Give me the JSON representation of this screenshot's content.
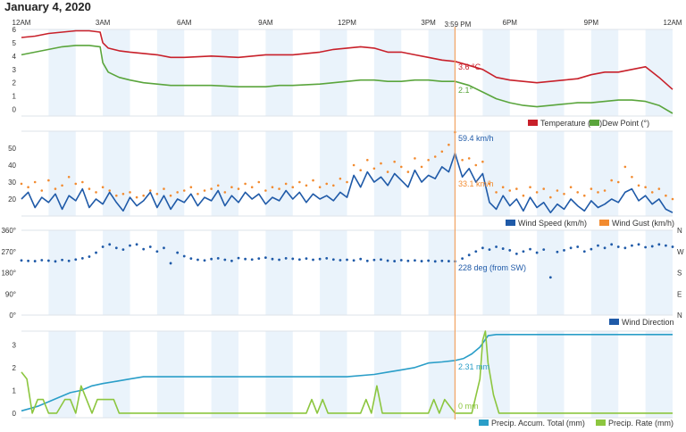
{
  "page": {
    "date_title": "January 4, 2020"
  },
  "cursor": {
    "time_label": "3:59 PM",
    "hour": 15.98
  },
  "time_ticks": [
    "12AM",
    "3AM",
    "6AM",
    "9AM",
    "12PM",
    "3PM",
    "6PM",
    "9PM",
    "12AM"
  ],
  "colors": {
    "temperature": "#c8202a",
    "dew_point": "#5aa53c",
    "wind_speed": "#1f5aa8",
    "wind_gust": "#f28b30",
    "wind_dir": "#1f5aa8",
    "precip_total": "#2a9ec8",
    "precip_rate": "#8cc63f",
    "cursor": "#f2a463",
    "band": "#eaf3fb"
  },
  "chart_data": [
    {
      "type": "line",
      "ylim": [
        -0.5,
        6
      ],
      "yticks": [
        "0",
        "1",
        "2",
        "3",
        "4",
        "5",
        "6"
      ],
      "legend": [
        "Temperature (°C)",
        "Dew Point (°)"
      ],
      "annotations": [
        "3.6 °C",
        "2.1°"
      ],
      "series": [
        {
          "name": "Temperature (°C)",
          "x": [
            0,
            0.5,
            1,
            1.5,
            2,
            2.5,
            2.9,
            3.0,
            3.2,
            3.6,
            4,
            4.5,
            5,
            5.5,
            6,
            7,
            8,
            9,
            9.5,
            10,
            11,
            11.5,
            12,
            12.5,
            13,
            13.5,
            14,
            14.5,
            15,
            15.5,
            15.98,
            16.5,
            17,
            17.5,
            18,
            18.5,
            19,
            19.5,
            20,
            20.5,
            21,
            21.5,
            22,
            22.5,
            23,
            23.5,
            24
          ],
          "values": [
            5.4,
            5.5,
            5.7,
            5.8,
            5.9,
            5.9,
            5.8,
            5.0,
            4.6,
            4.4,
            4.3,
            4.2,
            4.1,
            3.9,
            3.9,
            4.0,
            3.9,
            4.1,
            4.1,
            4.1,
            4.3,
            4.5,
            4.6,
            4.7,
            4.6,
            4.3,
            4.3,
            4.1,
            3.9,
            3.7,
            3.6,
            3.3,
            3.0,
            2.4,
            2.2,
            2.1,
            2.0,
            2.1,
            2.2,
            2.3,
            2.6,
            2.8,
            2.8,
            3.0,
            3.2,
            2.4,
            1.5
          ]
        },
        {
          "name": "Dew Point (°)",
          "x": [
            0,
            0.5,
            1,
            1.5,
            2,
            2.5,
            2.9,
            3.0,
            3.2,
            3.6,
            4,
            4.5,
            5,
            5.5,
            6,
            7,
            8,
            9,
            9.5,
            10,
            11,
            11.5,
            12,
            12.5,
            13,
            13.5,
            14,
            14.5,
            15,
            15.5,
            15.98,
            16.5,
            17,
            17.5,
            18,
            18.5,
            19,
            19.5,
            20,
            20.5,
            21,
            21.5,
            22,
            22.5,
            23,
            23.5,
            24
          ],
          "values": [
            4.1,
            4.3,
            4.5,
            4.7,
            4.8,
            4.8,
            4.7,
            3.5,
            2.8,
            2.4,
            2.2,
            2.0,
            1.9,
            1.8,
            1.8,
            1.8,
            1.7,
            1.7,
            1.8,
            1.8,
            1.9,
            2.0,
            2.1,
            2.2,
            2.2,
            2.1,
            2.1,
            2.2,
            2.2,
            2.1,
            2.1,
            1.8,
            1.3,
            0.8,
            0.5,
            0.3,
            0.2,
            0.3,
            0.4,
            0.5,
            0.5,
            0.6,
            0.7,
            0.7,
            0.6,
            0.3,
            -0.3
          ]
        }
      ]
    },
    {
      "type": "line",
      "ylim": [
        10,
        60
      ],
      "yticks": [
        "20",
        "30",
        "40",
        "50"
      ],
      "legend": [
        "Wind Speed (km/h)",
        "Wind Gust (km/h)"
      ],
      "annotations": [
        "59.4 km/h",
        "33.1 km/h"
      ],
      "series": [
        {
          "name": "Wind Speed (km/h)",
          "x": [
            0,
            0.25,
            0.5,
            0.75,
            1,
            1.25,
            1.5,
            1.75,
            2,
            2.25,
            2.5,
            2.75,
            3,
            3.25,
            3.5,
            3.75,
            4,
            4.25,
            4.5,
            4.75,
            5,
            5.25,
            5.5,
            5.75,
            6,
            6.25,
            6.5,
            6.75,
            7,
            7.25,
            7.5,
            7.75,
            8,
            8.25,
            8.5,
            8.75,
            9,
            9.25,
            9.5,
            9.75,
            10,
            10.25,
            10.5,
            10.75,
            11,
            11.25,
            11.5,
            11.75,
            12,
            12.25,
            12.5,
            12.75,
            13,
            13.25,
            13.5,
            13.75,
            14,
            14.25,
            14.5,
            14.75,
            15,
            15.25,
            15.5,
            15.75,
            15.98,
            16.25,
            16.5,
            16.75,
            17,
            17.25,
            17.5,
            17.75,
            18,
            18.25,
            18.5,
            18.75,
            19,
            19.25,
            19.5,
            19.75,
            20,
            20.25,
            20.5,
            20.75,
            21,
            21.25,
            21.5,
            21.75,
            22,
            22.25,
            22.5,
            22.75,
            23,
            23.25,
            23.5,
            23.75,
            24
          ],
          "values": [
            20,
            24,
            15,
            21,
            18,
            23,
            14,
            22,
            19,
            26,
            15,
            20,
            17,
            24,
            18,
            13,
            21,
            16,
            19,
            24,
            15,
            22,
            14,
            20,
            18,
            23,
            16,
            21,
            19,
            25,
            16,
            22,
            18,
            24,
            20,
            23,
            17,
            21,
            19,
            25,
            20,
            24,
            18,
            23,
            20,
            22,
            19,
            24,
            21,
            34,
            27,
            36,
            30,
            33,
            28,
            35,
            31,
            27,
            37,
            30,
            34,
            32,
            39,
            36,
            47,
            33,
            38,
            30,
            35,
            18,
            14,
            22,
            16,
            20,
            13,
            21,
            15,
            18,
            12,
            17,
            14,
            20,
            16,
            13,
            19,
            15,
            17,
            20,
            18,
            24,
            26,
            19,
            22,
            17,
            20,
            14,
            12
          ]
        },
        {
          "name": "Wind Gust (km/h)",
          "x": [
            0,
            0.25,
            0.5,
            0.75,
            1,
            1.25,
            1.5,
            1.75,
            2,
            2.25,
            2.5,
            2.75,
            3,
            3.25,
            3.5,
            3.75,
            4,
            4.25,
            4.5,
            4.75,
            5,
            5.25,
            5.5,
            5.75,
            6,
            6.25,
            6.5,
            6.75,
            7,
            7.25,
            7.5,
            7.75,
            8,
            8.25,
            8.5,
            8.75,
            9,
            9.25,
            9.5,
            9.75,
            10,
            10.25,
            10.5,
            10.75,
            11,
            11.25,
            11.5,
            11.75,
            12,
            12.25,
            12.5,
            12.75,
            13,
            13.25,
            13.5,
            13.75,
            14,
            14.25,
            14.5,
            14.75,
            15,
            15.25,
            15.5,
            15.75,
            15.98,
            16.25,
            16.5,
            16.75,
            17,
            17.25,
            17.5,
            17.75,
            18,
            18.25,
            18.5,
            18.75,
            19,
            19.25,
            19.5,
            19.75,
            20,
            20.25,
            20.5,
            20.75,
            21,
            21.25,
            21.5,
            21.75,
            22,
            22.25,
            22.5,
            22.75,
            23,
            23.25,
            23.5,
            23.75,
            24
          ],
          "values": [
            29,
            27,
            30,
            25,
            31,
            26,
            28,
            33,
            29,
            30,
            26,
            24,
            27,
            25,
            22,
            23,
            24,
            21,
            22,
            25,
            23,
            26,
            22,
            24,
            25,
            27,
            23,
            25,
            26,
            28,
            24,
            27,
            26,
            29,
            27,
            30,
            25,
            27,
            26,
            29,
            27,
            30,
            28,
            31,
            27,
            29,
            28,
            32,
            30,
            40,
            37,
            43,
            38,
            41,
            36,
            42,
            39,
            36,
            44,
            39,
            43,
            45,
            48,
            52,
            59.4,
            43,
            44,
            40,
            42,
            29,
            24,
            27,
            25,
            26,
            22,
            27,
            24,
            26,
            21,
            25,
            23,
            27,
            24,
            22,
            26,
            24,
            25,
            31,
            30,
            39,
            33,
            28,
            27,
            24,
            26,
            22,
            20
          ]
        }
      ]
    },
    {
      "type": "scatter",
      "ylim": [
        0,
        360
      ],
      "yticks": [
        "0°",
        "90°",
        "180°",
        "270°",
        "360°"
      ],
      "right_ticks": [
        "N",
        "E",
        "S",
        "W",
        "N"
      ],
      "legend": [
        "Wind Direction"
      ],
      "annotations": [
        "228 deg (from SW)"
      ],
      "series": [
        {
          "name": "Wind Direction",
          "x": [
            0,
            0.25,
            0.5,
            0.75,
            1,
            1.25,
            1.5,
            1.75,
            2,
            2.25,
            2.5,
            2.75,
            3,
            3.25,
            3.5,
            3.75,
            4,
            4.25,
            4.5,
            4.75,
            5,
            5.25,
            5.5,
            5.75,
            6,
            6.25,
            6.5,
            6.75,
            7,
            7.25,
            7.5,
            7.75,
            8,
            8.25,
            8.5,
            8.75,
            9,
            9.25,
            9.5,
            9.75,
            10,
            10.25,
            10.5,
            10.75,
            11,
            11.25,
            11.5,
            11.75,
            12,
            12.25,
            12.5,
            12.75,
            13,
            13.25,
            13.5,
            13.75,
            14,
            14.25,
            14.5,
            14.75,
            15,
            15.25,
            15.5,
            15.75,
            15.98,
            16.25,
            16.5,
            16.75,
            17,
            17.25,
            17.5,
            17.75,
            18,
            18.25,
            18.5,
            18.75,
            19,
            19.25,
            19.5,
            19.75,
            20,
            20.25,
            20.5,
            20.75,
            21,
            21.25,
            21.5,
            21.75,
            22,
            22.25,
            22.5,
            22.75,
            23,
            23.25,
            23.5,
            23.75,
            24
          ],
          "values": [
            232,
            230,
            229,
            233,
            231,
            228,
            234,
            230,
            236,
            241,
            248,
            265,
            290,
            300,
            285,
            278,
            295,
            300,
            280,
            290,
            270,
            285,
            220,
            265,
            250,
            240,
            235,
            232,
            238,
            241,
            235,
            230,
            242,
            238,
            236,
            240,
            244,
            238,
            235,
            241,
            239,
            236,
            240,
            235,
            238,
            241,
            236,
            233,
            235,
            232,
            238,
            230,
            234,
            236,
            231,
            229,
            233,
            230,
            232,
            229,
            231,
            228,
            230,
            229,
            228,
            240,
            255,
            270,
            285,
            278,
            290,
            282,
            275,
            260,
            270,
            280,
            265,
            278,
            160,
            268,
            275,
            285,
            290,
            270,
            280,
            295,
            285,
            300,
            290,
            285,
            295,
            300,
            288,
            292,
            300,
            295,
            290
          ]
        }
      ]
    },
    {
      "type": "line",
      "ylim": [
        -0.2,
        3.6
      ],
      "yticks": [
        "0",
        "1",
        "2",
        "3"
      ],
      "legend": [
        "Precip. Accum. Total (mm)",
        "Precip. Rate (mm)"
      ],
      "annotations": [
        "2.31 mm",
        "0 mm"
      ],
      "series": [
        {
          "name": "Precip. Accum. Total (mm)",
          "x": [
            0,
            0.3,
            0.6,
            1.0,
            1.4,
            1.8,
            2.2,
            2.6,
            3.0,
            3.5,
            4.0,
            4.5,
            5.0,
            6,
            7,
            8,
            9,
            10,
            11,
            12,
            13,
            13.5,
            14.0,
            14.5,
            15.0,
            15.5,
            15.98,
            16.3,
            16.6,
            16.9,
            17.2,
            17.5,
            18,
            19,
            20,
            21,
            22,
            23,
            24
          ],
          "values": [
            0.1,
            0.2,
            0.3,
            0.5,
            0.7,
            0.9,
            1.0,
            1.2,
            1.3,
            1.4,
            1.5,
            1.6,
            1.6,
            1.6,
            1.6,
            1.6,
            1.6,
            1.6,
            1.6,
            1.6,
            1.7,
            1.8,
            1.9,
            2.0,
            2.2,
            2.25,
            2.31,
            2.4,
            2.6,
            2.9,
            3.4,
            3.45,
            3.45,
            3.45,
            3.45,
            3.45,
            3.45,
            3.45,
            3.45
          ]
        },
        {
          "name": "Precip. Rate (mm)",
          "x": [
            0,
            0.2,
            0.4,
            0.6,
            0.8,
            1.0,
            1.3,
            1.6,
            1.8,
            2.0,
            2.2,
            2.4,
            2.6,
            2.8,
            3.0,
            3.2,
            3.4,
            3.6,
            3.8,
            10.5,
            10.7,
            10.9,
            11.1,
            11.3,
            11.5,
            12.5,
            12.7,
            12.9,
            13.1,
            13.3,
            13.5,
            15.0,
            15.2,
            15.4,
            15.6,
            15.98,
            16.6,
            16.9,
            17.0,
            17.1,
            17.2,
            17.4,
            17.6,
            24
          ],
          "values": [
            1.8,
            1.5,
            0,
            0.6,
            0.6,
            0,
            0,
            0.6,
            0.6,
            0,
            1.2,
            0.6,
            0,
            0.6,
            0.6,
            0.6,
            0.6,
            0,
            0,
            0,
            0.6,
            0,
            0.6,
            0,
            0,
            0,
            0.6,
            0,
            1.2,
            0,
            0,
            0,
            0.6,
            0,
            0.6,
            0,
            0,
            1.5,
            3.2,
            3.6,
            2.2,
            0.8,
            0,
            0
          ]
        }
      ]
    }
  ]
}
